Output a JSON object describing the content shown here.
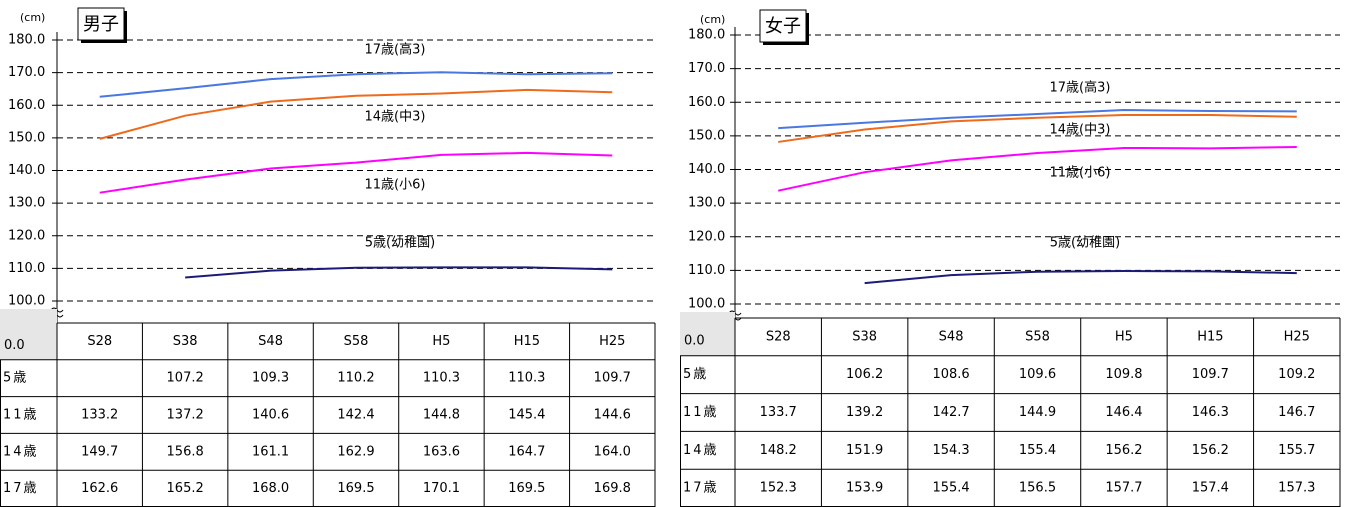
{
  "chart_data": [
    {
      "type": "line",
      "title": "男子",
      "y_unit": "(cm)",
      "y_break_label": "0.0",
      "categories": [
        "S28",
        "S38",
        "S48",
        "S58",
        "H5",
        "H15",
        "H25"
      ],
      "ylim": [
        100,
        180
      ],
      "yticks": [
        {
          "value": 100,
          "label": "100.0"
        },
        {
          "value": 110,
          "label": "110.0"
        },
        {
          "value": 120,
          "label": "120.0"
        },
        {
          "value": 130,
          "label": "130.0"
        },
        {
          "value": 140,
          "label": "140.0"
        },
        {
          "value": 150,
          "label": "150.0"
        },
        {
          "value": 160,
          "label": "160.0"
        },
        {
          "value": 170,
          "label": "170.0"
        },
        {
          "value": 180,
          "label": "180.0"
        }
      ],
      "grid": true,
      "series": [
        {
          "name": "5歳",
          "label": "5歳(幼稚園)",
          "color": "#1c1c78",
          "values": [
            null,
            107.2,
            109.3,
            110.2,
            110.3,
            110.3,
            109.7
          ],
          "value_labels": [
            null,
            "107.2",
            "109.3",
            "110.2",
            "110.3",
            "110.3",
            "109.7"
          ]
        },
        {
          "name": "11歳",
          "label": "11歳(小6)",
          "color": "#ff00ff",
          "values": [
            133.2,
            137.2,
            140.6,
            142.4,
            144.8,
            145.4,
            144.6
          ],
          "value_labels": [
            "133.2",
            "137.2",
            "140.6",
            "142.4",
            "144.8",
            "145.4",
            "144.6"
          ]
        },
        {
          "name": "14歳",
          "label": "14歳(中3)",
          "color": "#ee6a1c",
          "values": [
            149.7,
            156.8,
            161.1,
            162.9,
            163.6,
            164.7,
            164
          ],
          "value_labels": [
            "149.7",
            "156.8",
            "161.1",
            "162.9",
            "163.6",
            "164.7",
            "164.0"
          ]
        },
        {
          "name": "17歳",
          "label": "17歳(高3)",
          "color": "#4a78e0",
          "values": [
            162.6,
            165.2,
            168,
            169.5,
            170.1,
            169.5,
            169.8
          ],
          "value_labels": [
            "162.6",
            "165.2",
            "168.0",
            "169.5",
            "170.1",
            "169.5",
            "169.8"
          ]
        }
      ]
    },
    {
      "type": "line",
      "title": "女子",
      "y_unit": "(cm)",
      "y_break_label": "0.0",
      "categories": [
        "S28",
        "S38",
        "S48",
        "S58",
        "H5",
        "H15",
        "H25"
      ],
      "ylim": [
        100,
        180
      ],
      "yticks": [
        {
          "value": 100,
          "label": "100.0"
        },
        {
          "value": 110,
          "label": "110.0"
        },
        {
          "value": 120,
          "label": "120.0"
        },
        {
          "value": 130,
          "label": "130.0"
        },
        {
          "value": 140,
          "label": "140.0"
        },
        {
          "value": 150,
          "label": "150.0"
        },
        {
          "value": 160,
          "label": "160.0"
        },
        {
          "value": 170,
          "label": "170.0"
        },
        {
          "value": 180,
          "label": "180.0"
        }
      ],
      "grid": true,
      "series": [
        {
          "name": "5歳",
          "label": "5歳(幼稚園)",
          "color": "#1c1c78",
          "values": [
            null,
            106.2,
            108.6,
            109.6,
            109.8,
            109.7,
            109.2
          ],
          "value_labels": [
            null,
            "106.2",
            "108.6",
            "109.6",
            "109.8",
            "109.7",
            "109.2"
          ]
        },
        {
          "name": "11歳",
          "label": "11歳(小6)",
          "color": "#ff00ff",
          "values": [
            133.7,
            139.2,
            142.7,
            144.9,
            146.4,
            146.3,
            146.7
          ],
          "value_labels": [
            "133.7",
            "139.2",
            "142.7",
            "144.9",
            "146.4",
            "146.3",
            "146.7"
          ]
        },
        {
          "name": "14歳",
          "label": "14歳(中3)",
          "color": "#ee6a1c",
          "values": [
            148.2,
            151.9,
            154.3,
            155.4,
            156.2,
            156.2,
            155.7
          ],
          "value_labels": [
            "148.2",
            "151.9",
            "154.3",
            "155.4",
            "156.2",
            "156.2",
            "155.7"
          ]
        },
        {
          "name": "17歳",
          "label": "17歳(高3)",
          "color": "#4a78e0",
          "values": [
            152.3,
            153.9,
            155.4,
            156.5,
            157.7,
            157.4,
            157.3
          ],
          "value_labels": [
            "152.3",
            "153.9",
            "155.4",
            "156.5",
            "157.7",
            "157.4",
            "157.3"
          ]
        }
      ]
    }
  ]
}
